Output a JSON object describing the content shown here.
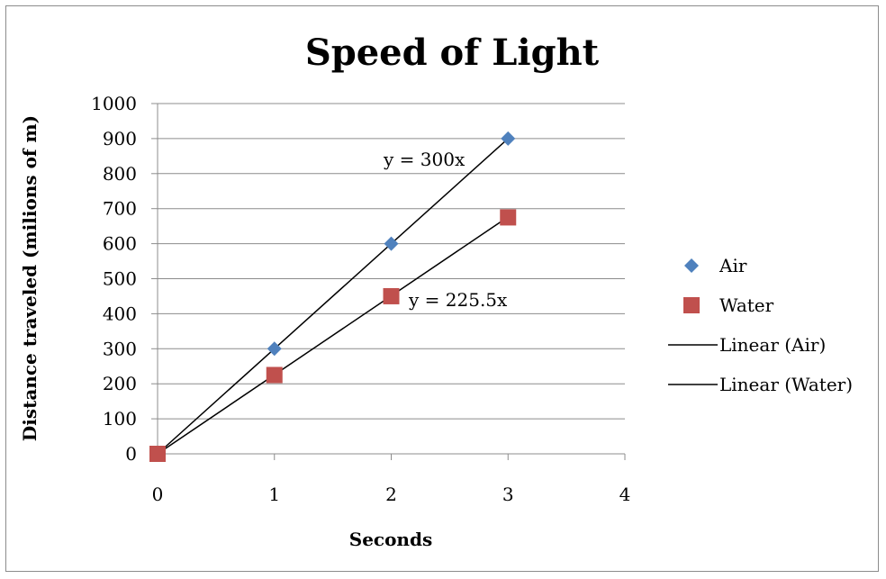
{
  "chart_data": {
    "type": "scatter",
    "title": "Speed of Light",
    "xlabel": "Seconds",
    "ylabel": "Distance traveled (milions of m)",
    "xlim": [
      0,
      4
    ],
    "ylim": [
      0,
      1000
    ],
    "x_ticks": [
      0,
      1,
      2,
      3,
      4
    ],
    "y_ticks": [
      0,
      100,
      200,
      300,
      400,
      500,
      600,
      700,
      800,
      900,
      1000
    ],
    "grid": "horizontal",
    "legend_position": "right",
    "series": [
      {
        "name": "Air",
        "marker": "diamond",
        "color": "#4f81bd",
        "x": [
          0,
          1,
          2,
          3
        ],
        "y": [
          0,
          300,
          600,
          900
        ]
      },
      {
        "name": "Water",
        "marker": "square",
        "color": "#c0504d",
        "x": [
          0,
          1,
          2,
          3
        ],
        "y": [
          0,
          225,
          450,
          675
        ]
      }
    ],
    "trendlines": [
      {
        "name": "Linear (Air)",
        "slope": 300,
        "x_range": [
          0,
          3
        ],
        "equation": "y = 300x",
        "color": "#000000"
      },
      {
        "name": "Linear (Water)",
        "slope": 225.5,
        "x_range": [
          0,
          3
        ],
        "equation": "y = 225.5x",
        "color": "#000000"
      }
    ]
  }
}
